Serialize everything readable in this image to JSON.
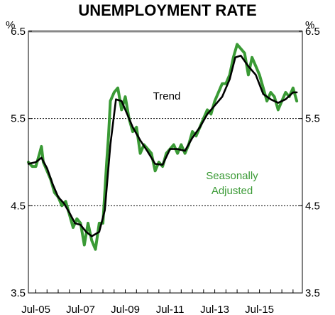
{
  "chart_data": {
    "type": "line",
    "title": "UNEMPLOYMENT RATE",
    "unit_left": "%",
    "unit_right": "%",
    "ylim": [
      3.5,
      6.5
    ],
    "yticks": [
      "3.5",
      "4.5",
      "5.5",
      "6.5"
    ],
    "xlim": [
      "2005-03",
      "2017-06"
    ],
    "xticks": [
      {
        "date": "2005-07",
        "label": "Jul-05"
      },
      {
        "date": "2007-07",
        "label": "Jul-07"
      },
      {
        "date": "2009-07",
        "label": "Jul-09"
      },
      {
        "date": "2011-07",
        "label": "Jul-11"
      },
      {
        "date": "2013-07",
        "label": "Jul-13"
      },
      {
        "date": "2015-07",
        "label": "Jul-15"
      }
    ],
    "grid": "horizontal dotted at 4.5 and 5.5",
    "annotations": [
      {
        "text": "Trend",
        "series": "Trend"
      },
      {
        "text": "Seasonally",
        "series": "Seasonally Adjusted"
      },
      {
        "text": "Adjusted",
        "series": "Seasonally Adjusted"
      }
    ],
    "series": [
      {
        "name": "Seasonally Adjusted",
        "color": "#3a9a35",
        "points": [
          [
            "2005-03",
            5.0
          ],
          [
            "2005-05",
            4.95
          ],
          [
            "2005-07",
            4.95
          ],
          [
            "2005-09",
            5.1
          ],
          [
            "2005-10",
            5.18
          ],
          [
            "2005-11",
            5.0
          ],
          [
            "2006-01",
            4.9
          ],
          [
            "2006-03",
            4.8
          ],
          [
            "2006-05",
            4.65
          ],
          [
            "2006-07",
            4.6
          ],
          [
            "2006-09",
            4.5
          ],
          [
            "2006-11",
            4.55
          ],
          [
            "2007-01",
            4.4
          ],
          [
            "2007-03",
            4.25
          ],
          [
            "2007-05",
            4.35
          ],
          [
            "2007-07",
            4.3
          ],
          [
            "2007-09",
            4.05
          ],
          [
            "2007-11",
            4.3
          ],
          [
            "2008-01",
            4.1
          ],
          [
            "2008-03",
            4.0
          ],
          [
            "2008-05",
            4.3
          ],
          [
            "2008-07",
            4.3
          ],
          [
            "2008-09",
            5.0
          ],
          [
            "2008-10",
            5.3
          ],
          [
            "2008-11",
            5.7
          ],
          [
            "2009-01",
            5.8
          ],
          [
            "2009-03",
            5.85
          ],
          [
            "2009-05",
            5.6
          ],
          [
            "2009-07",
            5.75
          ],
          [
            "2009-09",
            5.5
          ],
          [
            "2009-11",
            5.35
          ],
          [
            "2010-01",
            5.4
          ],
          [
            "2010-03",
            5.1
          ],
          [
            "2010-05",
            5.2
          ],
          [
            "2010-07",
            5.15
          ],
          [
            "2010-09",
            5.1
          ],
          [
            "2010-11",
            4.9
          ],
          [
            "2011-01",
            5.0
          ],
          [
            "2011-03",
            4.95
          ],
          [
            "2011-05",
            5.1
          ],
          [
            "2011-07",
            5.15
          ],
          [
            "2011-09",
            5.2
          ],
          [
            "2011-11",
            5.1
          ],
          [
            "2012-01",
            5.2
          ],
          [
            "2012-03",
            5.1
          ],
          [
            "2012-05",
            5.2
          ],
          [
            "2012-07",
            5.35
          ],
          [
            "2012-09",
            5.3
          ],
          [
            "2012-11",
            5.4
          ],
          [
            "2013-01",
            5.5
          ],
          [
            "2013-03",
            5.6
          ],
          [
            "2013-05",
            5.55
          ],
          [
            "2013-07",
            5.7
          ],
          [
            "2013-09",
            5.8
          ],
          [
            "2013-11",
            5.9
          ],
          [
            "2014-01",
            5.9
          ],
          [
            "2014-03",
            6.0
          ],
          [
            "2014-05",
            6.2
          ],
          [
            "2014-07",
            6.35
          ],
          [
            "2014-09",
            6.3
          ],
          [
            "2014-11",
            6.25
          ],
          [
            "2015-01",
            6.0
          ],
          [
            "2015-03",
            6.2
          ],
          [
            "2015-05",
            6.1
          ],
          [
            "2015-07",
            6.0
          ],
          [
            "2015-09",
            5.85
          ],
          [
            "2015-11",
            5.7
          ],
          [
            "2016-01",
            5.8
          ],
          [
            "2016-03",
            5.75
          ],
          [
            "2016-05",
            5.6
          ],
          [
            "2016-07",
            5.7
          ],
          [
            "2016-09",
            5.8
          ],
          [
            "2016-11",
            5.75
          ],
          [
            "2017-01",
            5.85
          ],
          [
            "2017-03",
            5.7
          ]
        ]
      },
      {
        "name": "Trend",
        "color": "#000000",
        "points": [
          [
            "2005-03",
            4.98
          ],
          [
            "2005-07",
            5.0
          ],
          [
            "2005-10",
            5.05
          ],
          [
            "2006-01",
            4.93
          ],
          [
            "2006-04",
            4.75
          ],
          [
            "2006-07",
            4.6
          ],
          [
            "2006-10",
            4.53
          ],
          [
            "2007-01",
            4.42
          ],
          [
            "2007-04",
            4.3
          ],
          [
            "2007-07",
            4.28
          ],
          [
            "2007-10",
            4.2
          ],
          [
            "2008-01",
            4.15
          ],
          [
            "2008-05",
            4.2
          ],
          [
            "2008-08",
            4.45
          ],
          [
            "2008-11",
            5.2
          ],
          [
            "2009-02",
            5.72
          ],
          [
            "2009-05",
            5.7
          ],
          [
            "2009-08",
            5.55
          ],
          [
            "2009-11",
            5.4
          ],
          [
            "2010-03",
            5.25
          ],
          [
            "2010-07",
            5.12
          ],
          [
            "2010-11",
            4.98
          ],
          [
            "2011-03",
            4.97
          ],
          [
            "2011-07",
            5.15
          ],
          [
            "2011-11",
            5.15
          ],
          [
            "2012-03",
            5.13
          ],
          [
            "2012-07",
            5.28
          ],
          [
            "2012-11",
            5.4
          ],
          [
            "2013-03",
            5.55
          ],
          [
            "2013-07",
            5.65
          ],
          [
            "2013-11",
            5.75
          ],
          [
            "2014-03",
            5.95
          ],
          [
            "2014-06",
            6.2
          ],
          [
            "2014-09",
            6.22
          ],
          [
            "2015-01",
            6.1
          ],
          [
            "2015-05",
            6.0
          ],
          [
            "2015-09",
            5.78
          ],
          [
            "2016-01",
            5.72
          ],
          [
            "2016-05",
            5.68
          ],
          [
            "2016-09",
            5.72
          ],
          [
            "2017-01",
            5.8
          ],
          [
            "2017-03",
            5.8
          ]
        ]
      }
    ]
  }
}
